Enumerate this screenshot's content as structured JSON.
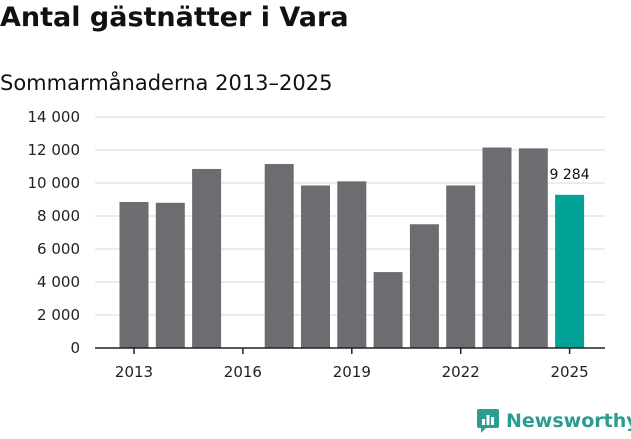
{
  "title": "Antal gästnätter i Vara",
  "subtitle": "Sommarmånaderna 2013–2025",
  "brand": "Newsworthy",
  "colors": {
    "bar": "#6d6c70",
    "highlight": "#00a396",
    "grid": "#d9d9d9",
    "axis": "#222222",
    "brand": "#2b9c8f"
  },
  "chart_data": {
    "type": "bar",
    "x": [
      2013,
      2014,
      2015,
      2016,
      2017,
      2018,
      2019,
      2020,
      2021,
      2022,
      2023,
      2024,
      2025
    ],
    "values": [
      8850,
      8800,
      10850,
      null,
      11150,
      9850,
      10100,
      4600,
      7500,
      9850,
      12150,
      12100,
      9284
    ],
    "x_tick_labels": [
      "2013",
      "2016",
      "2019",
      "2022",
      "2025"
    ],
    "x_tick_values": [
      2013,
      2016,
      2019,
      2022,
      2025
    ],
    "y_ticks": [
      0,
      2000,
      4000,
      6000,
      8000,
      10000,
      12000,
      14000
    ],
    "y_tick_labels": [
      "0",
      "2 000",
      "4 000",
      "6 000",
      "8 000",
      "10 000",
      "12 000",
      "14 000"
    ],
    "ylim": [
      0,
      14000
    ],
    "highlight_index": 12,
    "data_labels": [
      {
        "index": 12,
        "text": "9 284"
      }
    ],
    "grid": true
  }
}
